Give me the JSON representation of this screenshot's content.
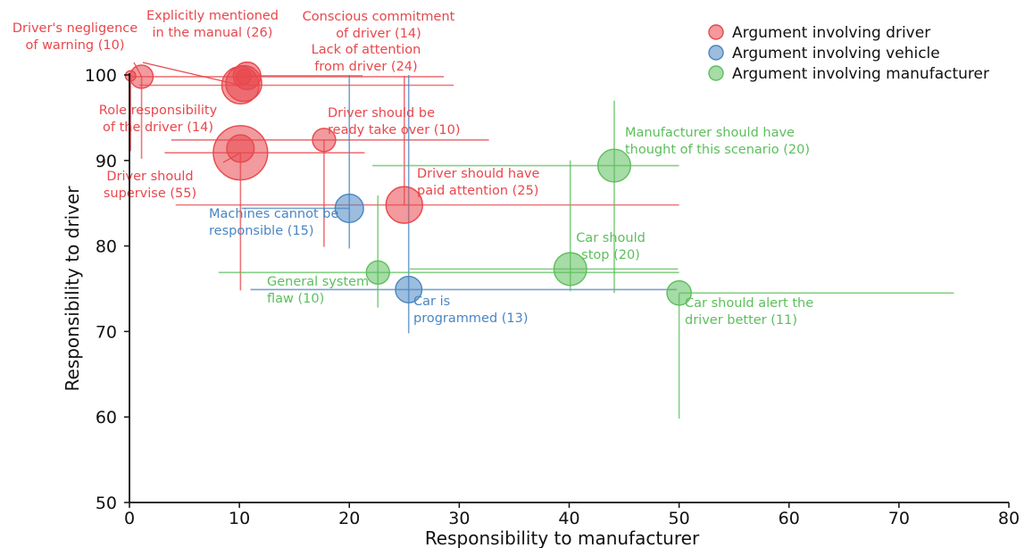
{
  "chart_data": {
    "type": "scatter",
    "title": "",
    "xlabel": "Responsibility to manufacturer",
    "ylabel": "Responsibility to driver",
    "xlim": [
      0,
      80
    ],
    "ylim": [
      50,
      100
    ],
    "xticks": [
      "0",
      "10",
      "20",
      "30",
      "40",
      "50",
      "60",
      "70",
      "80"
    ],
    "yticks": [
      "50",
      "60",
      "70",
      "80",
      "90",
      "100"
    ],
    "grid": false,
    "legend_position": "top-right",
    "colors": {
      "driver": "#e8474c",
      "vehicle": "#4a86c2",
      "manufacturer": "#5cbf5c"
    },
    "series": [
      {
        "name": "Argument involving driver",
        "key": "driver",
        "points": [
          {
            "x": 0.1,
            "y": 99.9,
            "n": 2,
            "label": [
              "",
              ""
            ],
            "xerr": [
              0.1,
              0.1
            ],
            "yerr": [
              8.8,
              0
            ]
          },
          {
            "x": 1.1,
            "y": 99.8,
            "n": 10,
            "label": [
              "Driver's negligence",
              "of warning (10)"
            ],
            "xerr": [
              1.0,
              27.5
            ],
            "yerr": [
              9.6,
              0
            ]
          },
          {
            "x": 10.4,
            "y": 99.8,
            "n": 4,
            "label": [
              "",
              ""
            ],
            "xerr": [
              0,
              0
            ],
            "yerr": [
              0,
              0
            ]
          },
          {
            "x": 10.7,
            "y": 99.9,
            "n": 14,
            "label": [
              "Conscious commitment",
              "of driver (14)"
            ],
            "xerr": [
              0,
              10.5
            ],
            "yerr": [
              0,
              0
            ]
          },
          {
            "x": 10.1,
            "y": 98.8,
            "n": 26,
            "label": [
              "Explicitly mentioned",
              "in the manual (26)"
            ],
            "xerr": [
              9.2,
              19.4
            ],
            "yerr": [
              0,
              0
            ]
          },
          {
            "x": 10.4,
            "y": 99.0,
            "n": 24,
            "label": [
              "Lack of attention",
              "from driver (24)"
            ],
            "xerr": [
              0,
              0
            ],
            "yerr": [
              0,
              0
            ]
          },
          {
            "x": 17.7,
            "y": 92.4,
            "n": 10,
            "label": [
              "Driver should be",
              "ready take over (10)"
            ],
            "xerr": [
              13.9,
              15.0
            ],
            "yerr": [
              12.5,
              0
            ]
          },
          {
            "x": 10.1,
            "y": 91.4,
            "n": 14,
            "label": [
              "Role responsibility",
              "of the driver (14)"
            ],
            "xerr": [
              0,
              0
            ],
            "yerr": [
              0,
              0
            ]
          },
          {
            "x": 10.1,
            "y": 90.9,
            "n": 55,
            "label": [
              "Driver should",
              "supervise (55)"
            ],
            "xerr": [
              6.9,
              11.3
            ],
            "yerr": [
              16.1,
              0
            ]
          },
          {
            "x": 25.0,
            "y": 84.8,
            "n": 25,
            "label": [
              "Driver should have",
              "paid attention (25)"
            ],
            "xerr": [
              20.8,
              25.0
            ],
            "yerr": [
              0,
              15.1
            ]
          }
        ]
      },
      {
        "name": "Argument involving vehicle",
        "key": "vehicle",
        "points": [
          {
            "x": 20.0,
            "y": 84.4,
            "n": 15,
            "label": [
              "Machines cannot be",
              "responsible (15)"
            ],
            "xerr": [
              9.8,
              0
            ],
            "yerr": [
              4.7,
              15.6
            ]
          },
          {
            "x": 25.4,
            "y": 74.9,
            "n": 13,
            "label": [
              "Car is",
              "programmed (13)"
            ],
            "xerr": [
              14.4,
              24.4
            ],
            "yerr": [
              5.1,
              25.1
            ]
          }
        ]
      },
      {
        "name": "Argument involving manufacturer",
        "key": "manufacturer",
        "points": [
          {
            "x": 44.1,
            "y": 89.4,
            "n": 20,
            "label": [
              "Manufacturer should have",
              "thought of this scenario (20)"
            ],
            "xerr": [
              22.0,
              5.9
            ],
            "yerr": [
              14.9,
              7.6
            ]
          },
          {
            "x": 40.1,
            "y": 77.3,
            "n": 20,
            "label": [
              "Car should",
              "stop (20)"
            ],
            "xerr": [
              14.6,
              9.8
            ],
            "yerr": [
              2.6,
              12.7
            ]
          },
          {
            "x": 22.6,
            "y": 76.9,
            "n": 10,
            "label": [
              "General system",
              "flaw (10)"
            ],
            "xerr": [
              14.5,
              27.4
            ],
            "yerr": [
              4.1,
              9.0
            ]
          },
          {
            "x": 50.0,
            "y": 74.5,
            "n": 11,
            "label": [
              "Car should alert the",
              "driver better (11)"
            ],
            "xerr": [
              0,
              25.0
            ],
            "yerr": [
              14.7,
              0
            ]
          }
        ]
      }
    ]
  }
}
